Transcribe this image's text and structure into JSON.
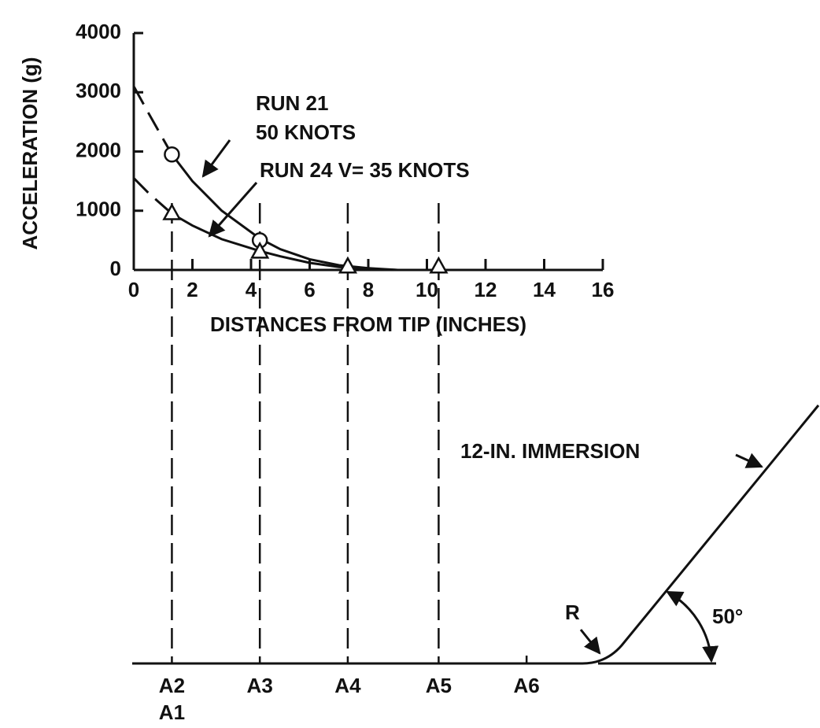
{
  "chart_data": {
    "type": "line",
    "xlabel": "DISTANCES FROM TIP (INCHES)",
    "ylabel": "ACCELERATION (g)",
    "xlim": [
      0,
      16
    ],
    "xticks": [
      0,
      2,
      4,
      6,
      8,
      10,
      12,
      14,
      16
    ],
    "ylim": [
      0,
      4000
    ],
    "yticks": [
      0,
      1000,
      2000,
      3000,
      4000
    ],
    "color": "#111111",
    "series": [
      {
        "marker": "circle",
        "x": [
          1.3,
          4.3
        ],
        "values": [
          1950,
          500
        ],
        "curve_x": [
          0,
          0.5,
          1.3,
          2,
          3,
          4.3,
          5,
          6,
          7,
          8,
          9
        ],
        "curve_values": [
          3100,
          2650,
          1950,
          1500,
          1000,
          530,
          350,
          180,
          80,
          30,
          0
        ]
      },
      {
        "marker": "triangle",
        "x": [
          1.3,
          4.3,
          7.3,
          10.4
        ],
        "values": [
          950,
          300,
          50,
          50
        ],
        "curve_x": [
          0,
          0.5,
          1.3,
          2,
          3,
          4.3,
          5,
          6,
          7,
          8,
          9
        ],
        "curve_values": [
          1550,
          1300,
          950,
          750,
          520,
          320,
          230,
          120,
          50,
          15,
          0
        ]
      }
    ],
    "annotations": [
      "RUN 21",
      "50 KNOTS",
      "RUN 24  V= 35 KNOTS"
    ],
    "stations": [
      {
        "x": 1.3,
        "labels": [
          "A2",
          "A1"
        ],
        "line": true
      },
      {
        "x": 4.3,
        "labels": [
          "A3"
        ],
        "line": true
      },
      {
        "x": 7.3,
        "labels": [
          "A4"
        ],
        "line": true
      },
      {
        "x": 10.4,
        "labels": [
          "A5"
        ],
        "line": true
      },
      {
        "x": 13.4,
        "labels": [
          "A6"
        ],
        "line": false
      }
    ]
  },
  "diagram": {
    "immersion": "12-IN. IMMERSION",
    "radius": "R",
    "angle": "50°"
  }
}
